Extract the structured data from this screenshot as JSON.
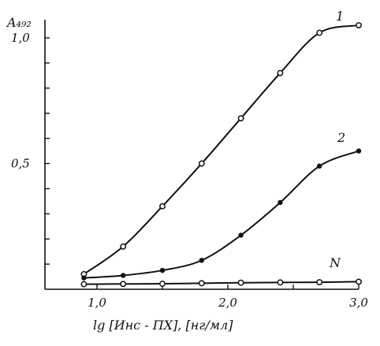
{
  "chart_data": {
    "type": "line",
    "title": "",
    "ylabel": "A₄₉₂",
    "xlabel": "lg [Инс - ПХ], [нг/мл]",
    "xlim": [
      0.8,
      3.1
    ],
    "ylim": [
      0,
      1.1
    ],
    "x_ticks": [
      1.0,
      1.5,
      2.0,
      2.5,
      3.0
    ],
    "x_tick_labels": [
      "1,0",
      "2,0",
      "3,0"
    ],
    "x_tick_labels_at": [
      1.0,
      2.0,
      3.0
    ],
    "y_ticks": [
      0.1,
      0.2,
      0.3,
      0.4,
      0.5,
      0.6,
      0.7,
      0.8,
      0.9,
      1.0
    ],
    "y_tick_labels": [
      "0,5",
      "1,0"
    ],
    "y_tick_labels_at": [
      0.5,
      1.0
    ],
    "grid": false,
    "series": [
      {
        "name": "1",
        "marker": "open",
        "x": [
          0.9,
          1.2,
          1.5,
          1.8,
          2.1,
          2.4,
          2.7,
          3.0
        ],
        "y": [
          0.06,
          0.17,
          0.33,
          0.5,
          0.68,
          0.86,
          1.02,
          1.05
        ]
      },
      {
        "name": "2",
        "marker": "filled",
        "x": [
          0.9,
          1.2,
          1.5,
          1.8,
          2.1,
          2.4,
          2.7,
          3.0
        ],
        "y": [
          0.045,
          0.055,
          0.075,
          0.115,
          0.215,
          0.345,
          0.49,
          0.55
        ]
      },
      {
        "name": "N",
        "marker": "open",
        "x": [
          0.9,
          1.2,
          1.5,
          1.8,
          2.1,
          2.4,
          2.7,
          3.0
        ],
        "y": [
          0.02,
          0.021,
          0.022,
          0.024,
          0.026,
          0.027,
          0.028,
          0.03
        ]
      }
    ]
  }
}
